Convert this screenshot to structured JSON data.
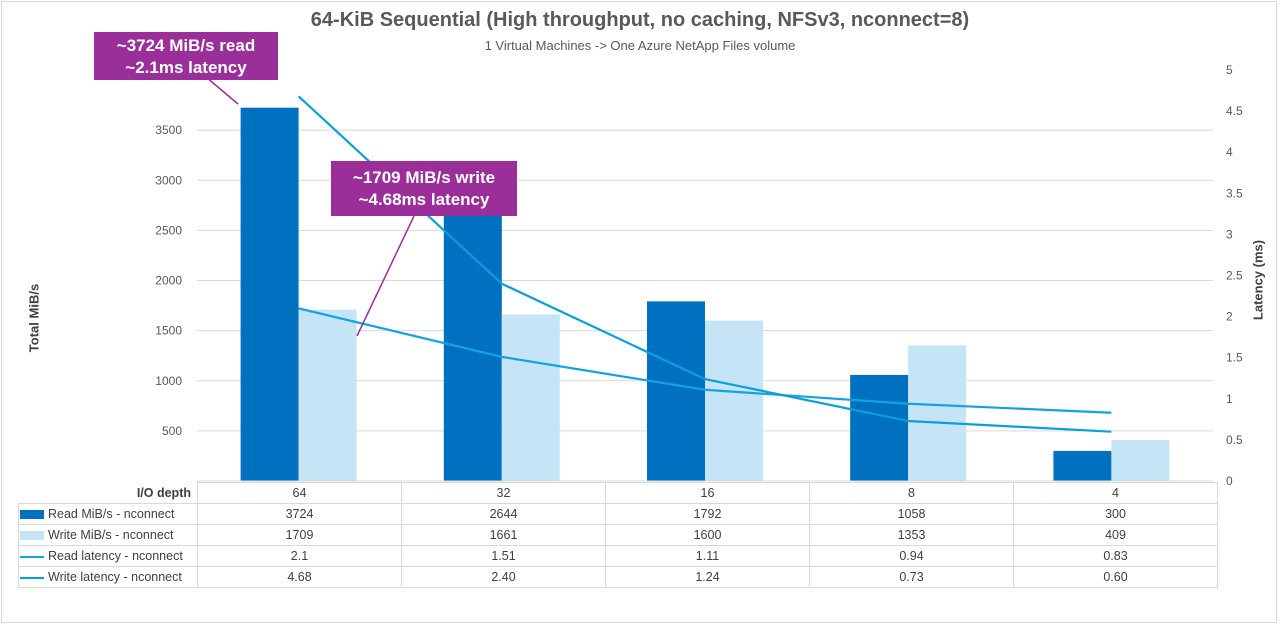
{
  "chart_data": {
    "type": "bar",
    "title": "64-KiB Sequential (High throughput, no caching, NFSv3, nconnect=8)",
    "subtitle": "1 Virtual Machines -> One Azure NetApp Files volume",
    "xlabel": "I/O depth",
    "ylabel": "Total MiB/s",
    "y2label": "Latency (ms)",
    "categories": [
      "64",
      "32",
      "16",
      "8",
      "4"
    ],
    "ylim": [
      0,
      4000
    ],
    "yticks": [
      500,
      1000,
      1500,
      2000,
      2500,
      3000,
      3500
    ],
    "y2lim": [
      0,
      5
    ],
    "y2ticks": [
      "0",
      "0.5",
      "1",
      "1.5",
      "2",
      "2.5",
      "3",
      "3.5",
      "4",
      "4.5",
      "5"
    ],
    "grid": true,
    "series": [
      {
        "name": "Read MiB/s - nconnect",
        "kind": "bar",
        "axis": "left",
        "color": "#0070c0",
        "values": [
          3724,
          2644,
          1792,
          1058,
          300
        ],
        "labels": [
          "3724",
          "2644",
          "1792",
          "1058",
          "300"
        ]
      },
      {
        "name": "Write MiB/s - nconnect",
        "kind": "bar",
        "axis": "left",
        "color": "#c5e4f5",
        "values": [
          1709,
          1661,
          1600,
          1353,
          409
        ],
        "labels": [
          "1709",
          "1661",
          "1600",
          "1353",
          "409"
        ]
      },
      {
        "name": "Read latency - nconnect",
        "kind": "line",
        "axis": "right",
        "color": "#15a3e0",
        "values": [
          2.1,
          1.51,
          1.11,
          0.94,
          0.83
        ],
        "labels": [
          "2.1",
          "1.51",
          "1.11",
          "0.94",
          "0.83"
        ]
      },
      {
        "name": "Write latency - nconnect",
        "kind": "line",
        "axis": "right",
        "color": "#0b9fd9",
        "values": [
          4.68,
          2.4,
          1.24,
          0.73,
          0.6
        ],
        "labels": [
          "4.68",
          "2.40",
          "1.24",
          "0.73",
          "0.60"
        ]
      }
    ],
    "annotations": [
      {
        "line1": "~3724 MiB/s read",
        "line2": "~2.1ms latency",
        "category": 0,
        "series": 0,
        "value": 3724,
        "color": "#9b2f9a"
      },
      {
        "line1": "~1709 MiB/s write",
        "line2": "~4.68ms latency",
        "category": 0,
        "series": 1,
        "value": 1709,
        "color": "#9b2f9a"
      }
    ]
  }
}
